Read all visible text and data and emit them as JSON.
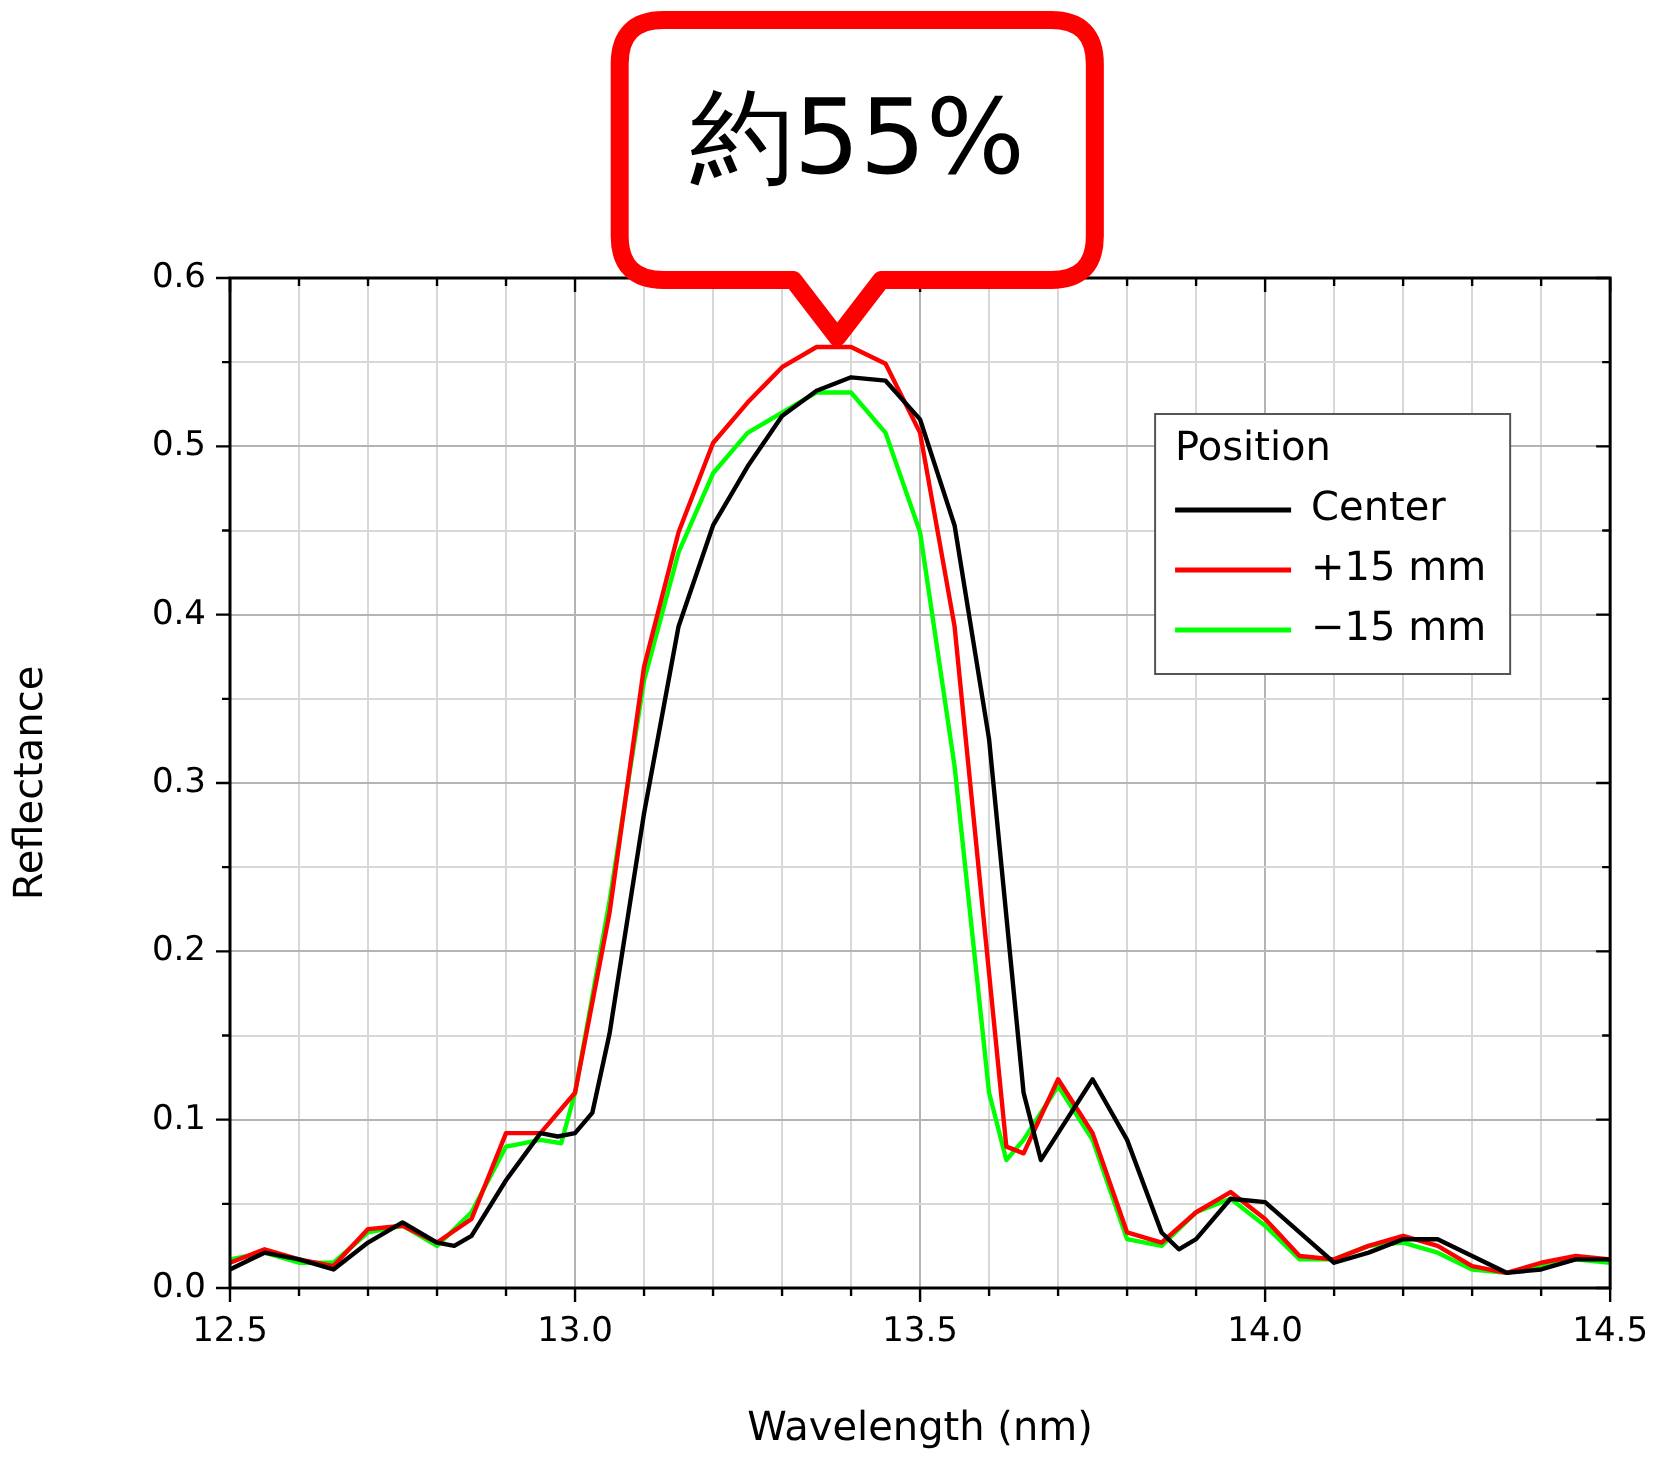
{
  "chart_data": {
    "type": "line",
    "xlabel": "Wavelength (nm)",
    "ylabel": "Reflectance",
    "legend_title": "Position",
    "legend": "top right",
    "grid": true,
    "marker": "none",
    "line_style": "solid",
    "xlim": [
      12.5,
      14.5
    ],
    "ylim": [
      0,
      0.6
    ],
    "xticks": [
      12.5,
      {
        "value": 12.6,
        "label": null
      },
      {
        "value": 12.7,
        "label": null
      },
      {
        "value": 12.8,
        "label": null
      },
      {
        "value": 12.9,
        "label": null
      },
      {
        "value": 13,
        "label": "13.0"
      },
      {
        "value": 13.1,
        "label": null
      },
      {
        "value": 13.2,
        "label": null
      },
      {
        "value": 13.3,
        "label": null
      },
      {
        "value": 13.4,
        "label": null
      },
      13.5,
      {
        "value": 13.6,
        "label": null
      },
      {
        "value": 13.7,
        "label": null
      },
      {
        "value": 13.8,
        "label": null
      },
      {
        "value": 13.9,
        "label": null
      },
      {
        "value": 14,
        "label": "14.0"
      },
      {
        "value": 14.1,
        "label": null
      },
      {
        "value": 14.2,
        "label": null
      },
      {
        "value": 14.3,
        "label": null
      },
      {
        "value": 14.4,
        "label": null
      },
      14.5
    ],
    "yticks": [
      {
        "value": 0,
        "label": "0.0"
      },
      {
        "value": 0.05,
        "label": null
      },
      0.1,
      {
        "value": 0.15,
        "label": null
      },
      0.2,
      {
        "value": 0.25,
        "label": null
      },
      0.3,
      {
        "value": 0.35,
        "label": null
      },
      0.4,
      {
        "value": 0.45,
        "label": null
      },
      0.5,
      {
        "value": 0.55,
        "label": null
      },
      0.6
    ],
    "annotations": [
      {
        "text": "約55%",
        "x": 13.38,
        "y": 0.56
      }
    ],
    "series": [
      {
        "name": "Center",
        "color": "#000000",
        "x": [
          12.5,
          12.55,
          12.6,
          12.65,
          12.7,
          12.75,
          12.8,
          12.825,
          12.85,
          12.9,
          12.95,
          12.975,
          13.0,
          13.025,
          13.05,
          13.1,
          13.15,
          13.2,
          13.25,
          13.3,
          13.35,
          13.4,
          13.45,
          13.5,
          13.55,
          13.6,
          13.65,
          13.675,
          13.7,
          13.75,
          13.8,
          13.85,
          13.875,
          13.9,
          13.95,
          14.0,
          14.05,
          14.1,
          14.15,
          14.2,
          14.25,
          14.3,
          14.35,
          14.4,
          14.45,
          14.5
        ],
        "values": [
          0.011,
          0.021,
          0.017,
          0.011,
          0.027,
          0.039,
          0.027,
          0.025,
          0.031,
          0.064,
          0.092,
          0.09,
          0.092,
          0.104,
          0.151,
          0.282,
          0.393,
          0.453,
          0.488,
          0.518,
          0.533,
          0.541,
          0.539,
          0.516,
          0.453,
          0.326,
          0.116,
          0.076,
          0.092,
          0.124,
          0.088,
          0.033,
          0.023,
          0.029,
          0.053,
          0.051,
          0.033,
          0.015,
          0.021,
          0.029,
          0.029,
          0.019,
          0.009,
          0.011,
          0.017,
          0.017
        ]
      },
      {
        "name": "+15 mm",
        "color": "#ff0000",
        "x": [
          12.5,
          12.55,
          12.6,
          12.65,
          12.7,
          12.75,
          12.8,
          12.85,
          12.9,
          12.95,
          13.0,
          13.05,
          13.1,
          13.15,
          13.2,
          13.25,
          13.3,
          13.35,
          13.4,
          13.45,
          13.5,
          13.55,
          13.6,
          13.625,
          13.65,
          13.7,
          13.75,
          13.8,
          13.85,
          13.9,
          13.95,
          14.0,
          14.05,
          14.1,
          14.15,
          14.2,
          14.25,
          14.3,
          14.35,
          14.4,
          14.45,
          14.5
        ],
        "values": [
          0.015,
          0.023,
          0.017,
          0.013,
          0.035,
          0.037,
          0.027,
          0.041,
          0.092,
          0.092,
          0.116,
          0.223,
          0.369,
          0.449,
          0.502,
          0.526,
          0.547,
          0.559,
          0.559,
          0.549,
          0.508,
          0.393,
          0.187,
          0.084,
          0.08,
          0.124,
          0.092,
          0.033,
          0.027,
          0.045,
          0.057,
          0.041,
          0.019,
          0.017,
          0.025,
          0.031,
          0.025,
          0.013,
          0.009,
          0.015,
          0.019,
          0.017
        ]
      },
      {
        "name": "−15 mm",
        "color": "#00ff00",
        "x": [
          12.5,
          12.55,
          12.6,
          12.65,
          12.7,
          12.75,
          12.8,
          12.85,
          12.9,
          12.95,
          12.98,
          13.0,
          13.05,
          13.1,
          13.15,
          13.2,
          13.25,
          13.3,
          13.35,
          13.4,
          13.45,
          13.5,
          13.55,
          13.6,
          13.625,
          13.65,
          13.7,
          13.75,
          13.8,
          13.85,
          13.9,
          13.95,
          14.0,
          14.05,
          14.1,
          14.15,
          14.2,
          14.25,
          14.3,
          14.35,
          14.4,
          14.45,
          14.5
        ],
        "values": [
          0.017,
          0.021,
          0.015,
          0.015,
          0.033,
          0.037,
          0.025,
          0.045,
          0.084,
          0.088,
          0.086,
          0.116,
          0.23,
          0.361,
          0.437,
          0.484,
          0.508,
          0.52,
          0.532,
          0.532,
          0.508,
          0.449,
          0.31,
          0.116,
          0.076,
          0.088,
          0.12,
          0.088,
          0.029,
          0.025,
          0.045,
          0.053,
          0.037,
          0.017,
          0.017,
          0.025,
          0.027,
          0.021,
          0.011,
          0.009,
          0.013,
          0.017,
          0.015
        ]
      }
    ]
  }
}
